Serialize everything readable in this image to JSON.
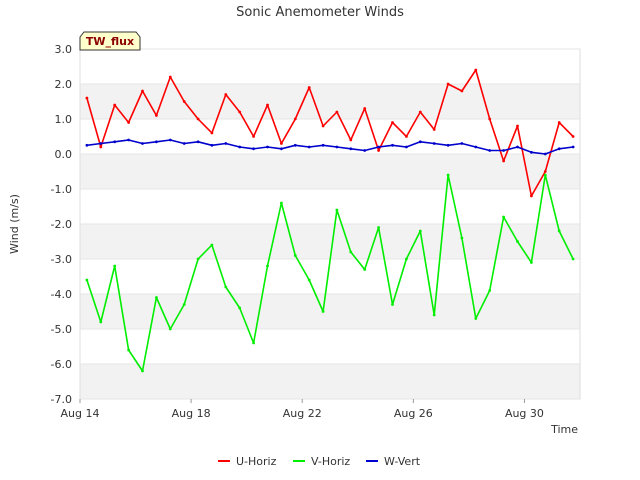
{
  "chart_data": {
    "type": "line",
    "title": "Sonic Anemometer Winds",
    "site_label": "TW_flux",
    "xlabel": "Time",
    "ylabel": "Wind (m/s)",
    "ylim": [
      -7.0,
      3.0
    ],
    "yticks": [
      3.0,
      2.0,
      1.0,
      0.0,
      -1.0,
      -2.0,
      -3.0,
      -4.0,
      -5.0,
      -6.0,
      -7.0
    ],
    "ytick_labels": [
      "3.0",
      "2.0",
      "1.0",
      "0.0",
      "-1.0",
      "-2.0",
      "-3.0",
      "-4.0",
      "-5.0",
      "-6.0",
      "-7.0"
    ],
    "xlim": [
      "2023-08-14",
      "2023-09-01"
    ],
    "xticks": [
      "2023-08-14",
      "2023-08-18",
      "2023-08-22",
      "2023-08-26",
      "2023-08-30"
    ],
    "xtick_labels": [
      "Aug 14",
      "Aug 18",
      "Aug 22",
      "Aug 26",
      "Aug 30"
    ],
    "grid": "horizontal bands",
    "legend_position": "bottom-center",
    "x": [
      "2023-08-14 06:00",
      "2023-08-14 18:00",
      "2023-08-15 06:00",
      "2023-08-15 18:00",
      "2023-08-16 06:00",
      "2023-08-16 18:00",
      "2023-08-17 06:00",
      "2023-08-17 18:00",
      "2023-08-18 06:00",
      "2023-08-18 18:00",
      "2023-08-19 06:00",
      "2023-08-19 18:00",
      "2023-08-20 06:00",
      "2023-08-20 18:00",
      "2023-08-21 06:00",
      "2023-08-21 18:00",
      "2023-08-22 06:00",
      "2023-08-22 18:00",
      "2023-08-23 06:00",
      "2023-08-23 18:00",
      "2023-08-24 06:00",
      "2023-08-24 18:00",
      "2023-08-25 06:00",
      "2023-08-25 18:00",
      "2023-08-26 06:00",
      "2023-08-26 18:00",
      "2023-08-27 06:00",
      "2023-08-27 18:00",
      "2023-08-28 06:00",
      "2023-08-28 18:00",
      "2023-08-29 06:00",
      "2023-08-29 18:00",
      "2023-08-30 06:00",
      "2023-08-30 18:00",
      "2023-08-31 06:00",
      "2023-08-31 18:00"
    ],
    "series": [
      {
        "name": "U-Horiz",
        "color": "#ff0000",
        "values": [
          1.6,
          0.2,
          1.4,
          0.9,
          1.8,
          1.1,
          2.2,
          1.5,
          1.0,
          0.6,
          1.7,
          1.2,
          0.5,
          1.4,
          0.3,
          1.0,
          1.9,
          0.8,
          1.2,
          0.4,
          1.3,
          0.1,
          0.9,
          0.5,
          1.2,
          0.7,
          2.0,
          1.8,
          2.4,
          1.0,
          -0.2,
          0.8,
          -1.2,
          -0.5,
          0.9,
          0.5
        ]
      },
      {
        "name": "V-Horiz",
        "color": "#00ee00",
        "values": [
          -3.6,
          -4.8,
          -3.2,
          -5.6,
          -6.2,
          -4.1,
          -5.0,
          -4.3,
          -3.0,
          -2.6,
          -3.8,
          -4.4,
          -5.4,
          -3.2,
          -1.4,
          -2.9,
          -3.6,
          -4.5,
          -1.6,
          -2.8,
          -3.3,
          -2.1,
          -4.3,
          -3.0,
          -2.2,
          -4.6,
          -0.6,
          -2.4,
          -4.7,
          -3.9,
          -1.8,
          -2.5,
          -3.1,
          -0.6,
          -2.2,
          -3.0
        ]
      },
      {
        "name": "W-Vert",
        "color": "#0000cc",
        "values": [
          0.25,
          0.3,
          0.35,
          0.4,
          0.3,
          0.35,
          0.4,
          0.3,
          0.35,
          0.25,
          0.3,
          0.2,
          0.15,
          0.2,
          0.15,
          0.25,
          0.2,
          0.25,
          0.2,
          0.15,
          0.1,
          0.2,
          0.25,
          0.2,
          0.35,
          0.3,
          0.25,
          0.3,
          0.2,
          0.1,
          0.1,
          0.2,
          0.05,
          0.0,
          0.15,
          0.2
        ]
      }
    ]
  }
}
